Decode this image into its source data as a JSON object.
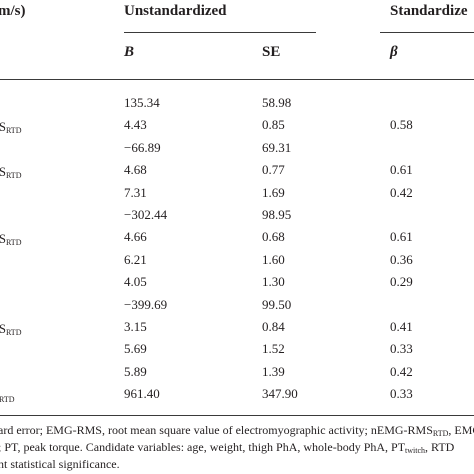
{
  "header": {
    "col0_fragment": "m/s)",
    "unstandardized": "Unstandardized",
    "standardized": "Standardize",
    "b": "B",
    "se": "SE",
    "beta": "β"
  },
  "rows": [
    {
      "label": "",
      "sub": "",
      "b": "135.34",
      "se": "58.98",
      "beta": ""
    },
    {
      "label": "S",
      "sub": "RTD",
      "b": "4.43",
      "se": "0.85",
      "beta": "0.58"
    },
    {
      "label": "",
      "sub": "",
      "b": "−66.89",
      "se": "69.31",
      "beta": ""
    },
    {
      "label": "S",
      "sub": "RTD",
      "b": "4.68",
      "se": "0.77",
      "beta": "0.61"
    },
    {
      "label": "",
      "sub": "",
      "b": "7.31",
      "se": "1.69",
      "beta": "0.42"
    },
    {
      "label": "",
      "sub": "",
      "b": "−302.44",
      "se": "98.95",
      "beta": ""
    },
    {
      "label": "S",
      "sub": "RTD",
      "b": "4.66",
      "se": "0.68",
      "beta": "0.61"
    },
    {
      "label": "",
      "sub": "",
      "b": "6.21",
      "se": "1.60",
      "beta": "0.36"
    },
    {
      "label": "",
      "sub": "",
      "b": "4.05",
      "se": "1.30",
      "beta": "0.29"
    },
    {
      "label": "",
      "sub": "",
      "b": "−399.69",
      "se": "99.50",
      "beta": ""
    },
    {
      "label": "S",
      "sub": "RTD",
      "b": "3.15",
      "se": "0.84",
      "beta": "0.41"
    },
    {
      "label": "",
      "sub": "",
      "b": "5.69",
      "se": "1.52",
      "beta": "0.33"
    },
    {
      "label": "",
      "sub": "",
      "b": "5.89",
      "se": "1.39",
      "beta": "0.42"
    },
    {
      "label": "",
      "sub": "RTD",
      "b": "961.40",
      "se": "347.90",
      "beta": "0.33"
    }
  ],
  "footnote": {
    "line1_a": "ard error; EMG-RMS, root mean square value of electromyographic activity; nEMG-RMS",
    "line1_sub": "RTD",
    "line1_b": ", EMG",
    "line2_a": "; PT, peak torque. Candidate variables: age, weight, thigh PhA, whole-body PhA, PT",
    "line2_sub": "twitch",
    "line2_b": ", RTD",
    "line3": "nt statistical significance."
  }
}
